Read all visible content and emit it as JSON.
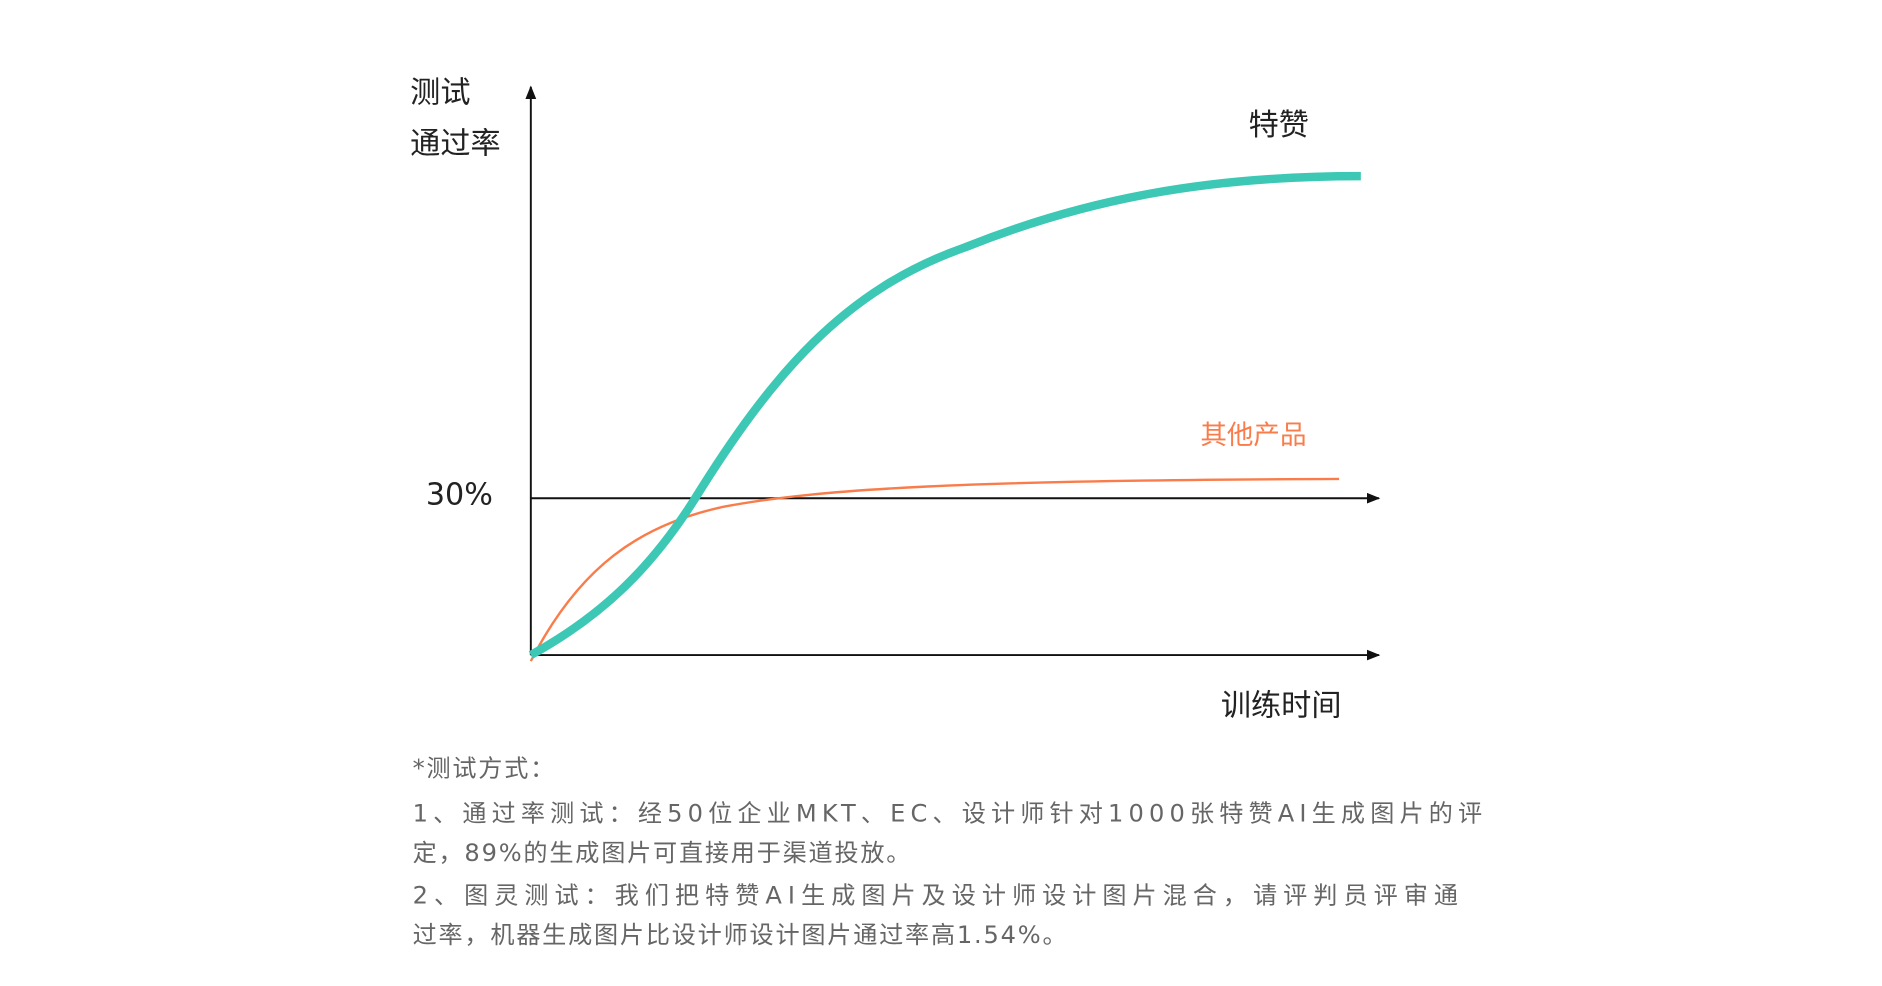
{
  "diagram": {
    "y_axis_label": [
      "测试",
      "通过率"
    ],
    "x_axis_label": "训练时间",
    "reference_label": "30%",
    "series": [
      {
        "name": "特赞",
        "color": "#3cc8b4"
      },
      {
        "name": "其他产品",
        "color": "#f97c4a"
      }
    ]
  },
  "notes": {
    "heading": "*测试方式：",
    "lines": [
      "1、通过率测试：经50位企业MKT、EC、设计师针对1000张特赞AI生成图片的评",
      "定，89%的生成图片可直接用于渠道投放。",
      "2、图灵测试：我们把特赞AI生成图片及设计师设计图片混合，请评判员评审通",
      "过率，机器生成图片比设计师设计图片通过率高1.54%。"
    ]
  }
}
